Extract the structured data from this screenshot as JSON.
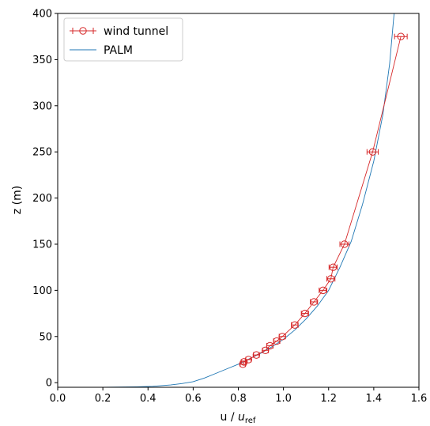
{
  "chart_data": {
    "type": "line",
    "xlabel_main": "u / ",
    "xlabel_italic": "u",
    "xlabel_sub": "ref",
    "ylabel": "z (m)",
    "xlim": [
      0.0,
      1.6
    ],
    "ylim": [
      -5,
      400
    ],
    "xticks": [
      0.0,
      0.2,
      0.4,
      0.6,
      0.8,
      1.0,
      1.2,
      1.4,
      1.6
    ],
    "yticks": [
      0,
      50,
      100,
      150,
      200,
      250,
      300,
      350,
      400
    ],
    "xtick_labels": [
      "0.0",
      "0.2",
      "0.4",
      "0.6",
      "0.8",
      "1.0",
      "1.2",
      "1.4",
      "1.6"
    ],
    "ytick_labels": [
      "0",
      "50",
      "100",
      "150",
      "200",
      "250",
      "300",
      "350",
      "400"
    ],
    "grid": false,
    "legend_position": "top-left",
    "series": [
      {
        "name": "wind tunnel",
        "kind": "errorbar",
        "color": "#d62728",
        "x": [
          0.82,
          0.825,
          0.845,
          0.88,
          0.92,
          0.94,
          0.97,
          0.995,
          1.05,
          1.095,
          1.135,
          1.175,
          1.21,
          1.22,
          1.27,
          1.395,
          1.52
        ],
        "y": [
          20,
          22.5,
          25,
          30,
          35,
          40,
          45,
          50,
          62.5,
          75,
          87.5,
          100,
          112.5,
          125,
          150,
          250,
          375
        ],
        "xerr": [
          0.012,
          0.012,
          0.012,
          0.013,
          0.013,
          0.014,
          0.014,
          0.014,
          0.015,
          0.016,
          0.016,
          0.017,
          0.018,
          0.018,
          0.02,
          0.025,
          0.028
        ]
      },
      {
        "name": "PALM",
        "kind": "line",
        "color": "#1f77b4",
        "x": [
          0.0,
          0.2,
          0.35,
          0.42,
          0.5,
          0.55,
          0.6,
          0.65,
          0.7,
          0.75,
          0.8,
          0.85,
          0.9,
          0.95,
          1.0,
          1.05,
          1.1,
          1.15,
          1.2,
          1.25,
          1.3,
          1.35,
          1.4,
          1.44,
          1.47,
          1.49
        ],
        "y": [
          -5,
          -5,
          -4.5,
          -4,
          -2.5,
          -1,
          1,
          5,
          10,
          15,
          20,
          26,
          32,
          39,
          47,
          57,
          69,
          83,
          100,
          125,
          153,
          193,
          240,
          290,
          345,
          400
        ]
      }
    ]
  }
}
